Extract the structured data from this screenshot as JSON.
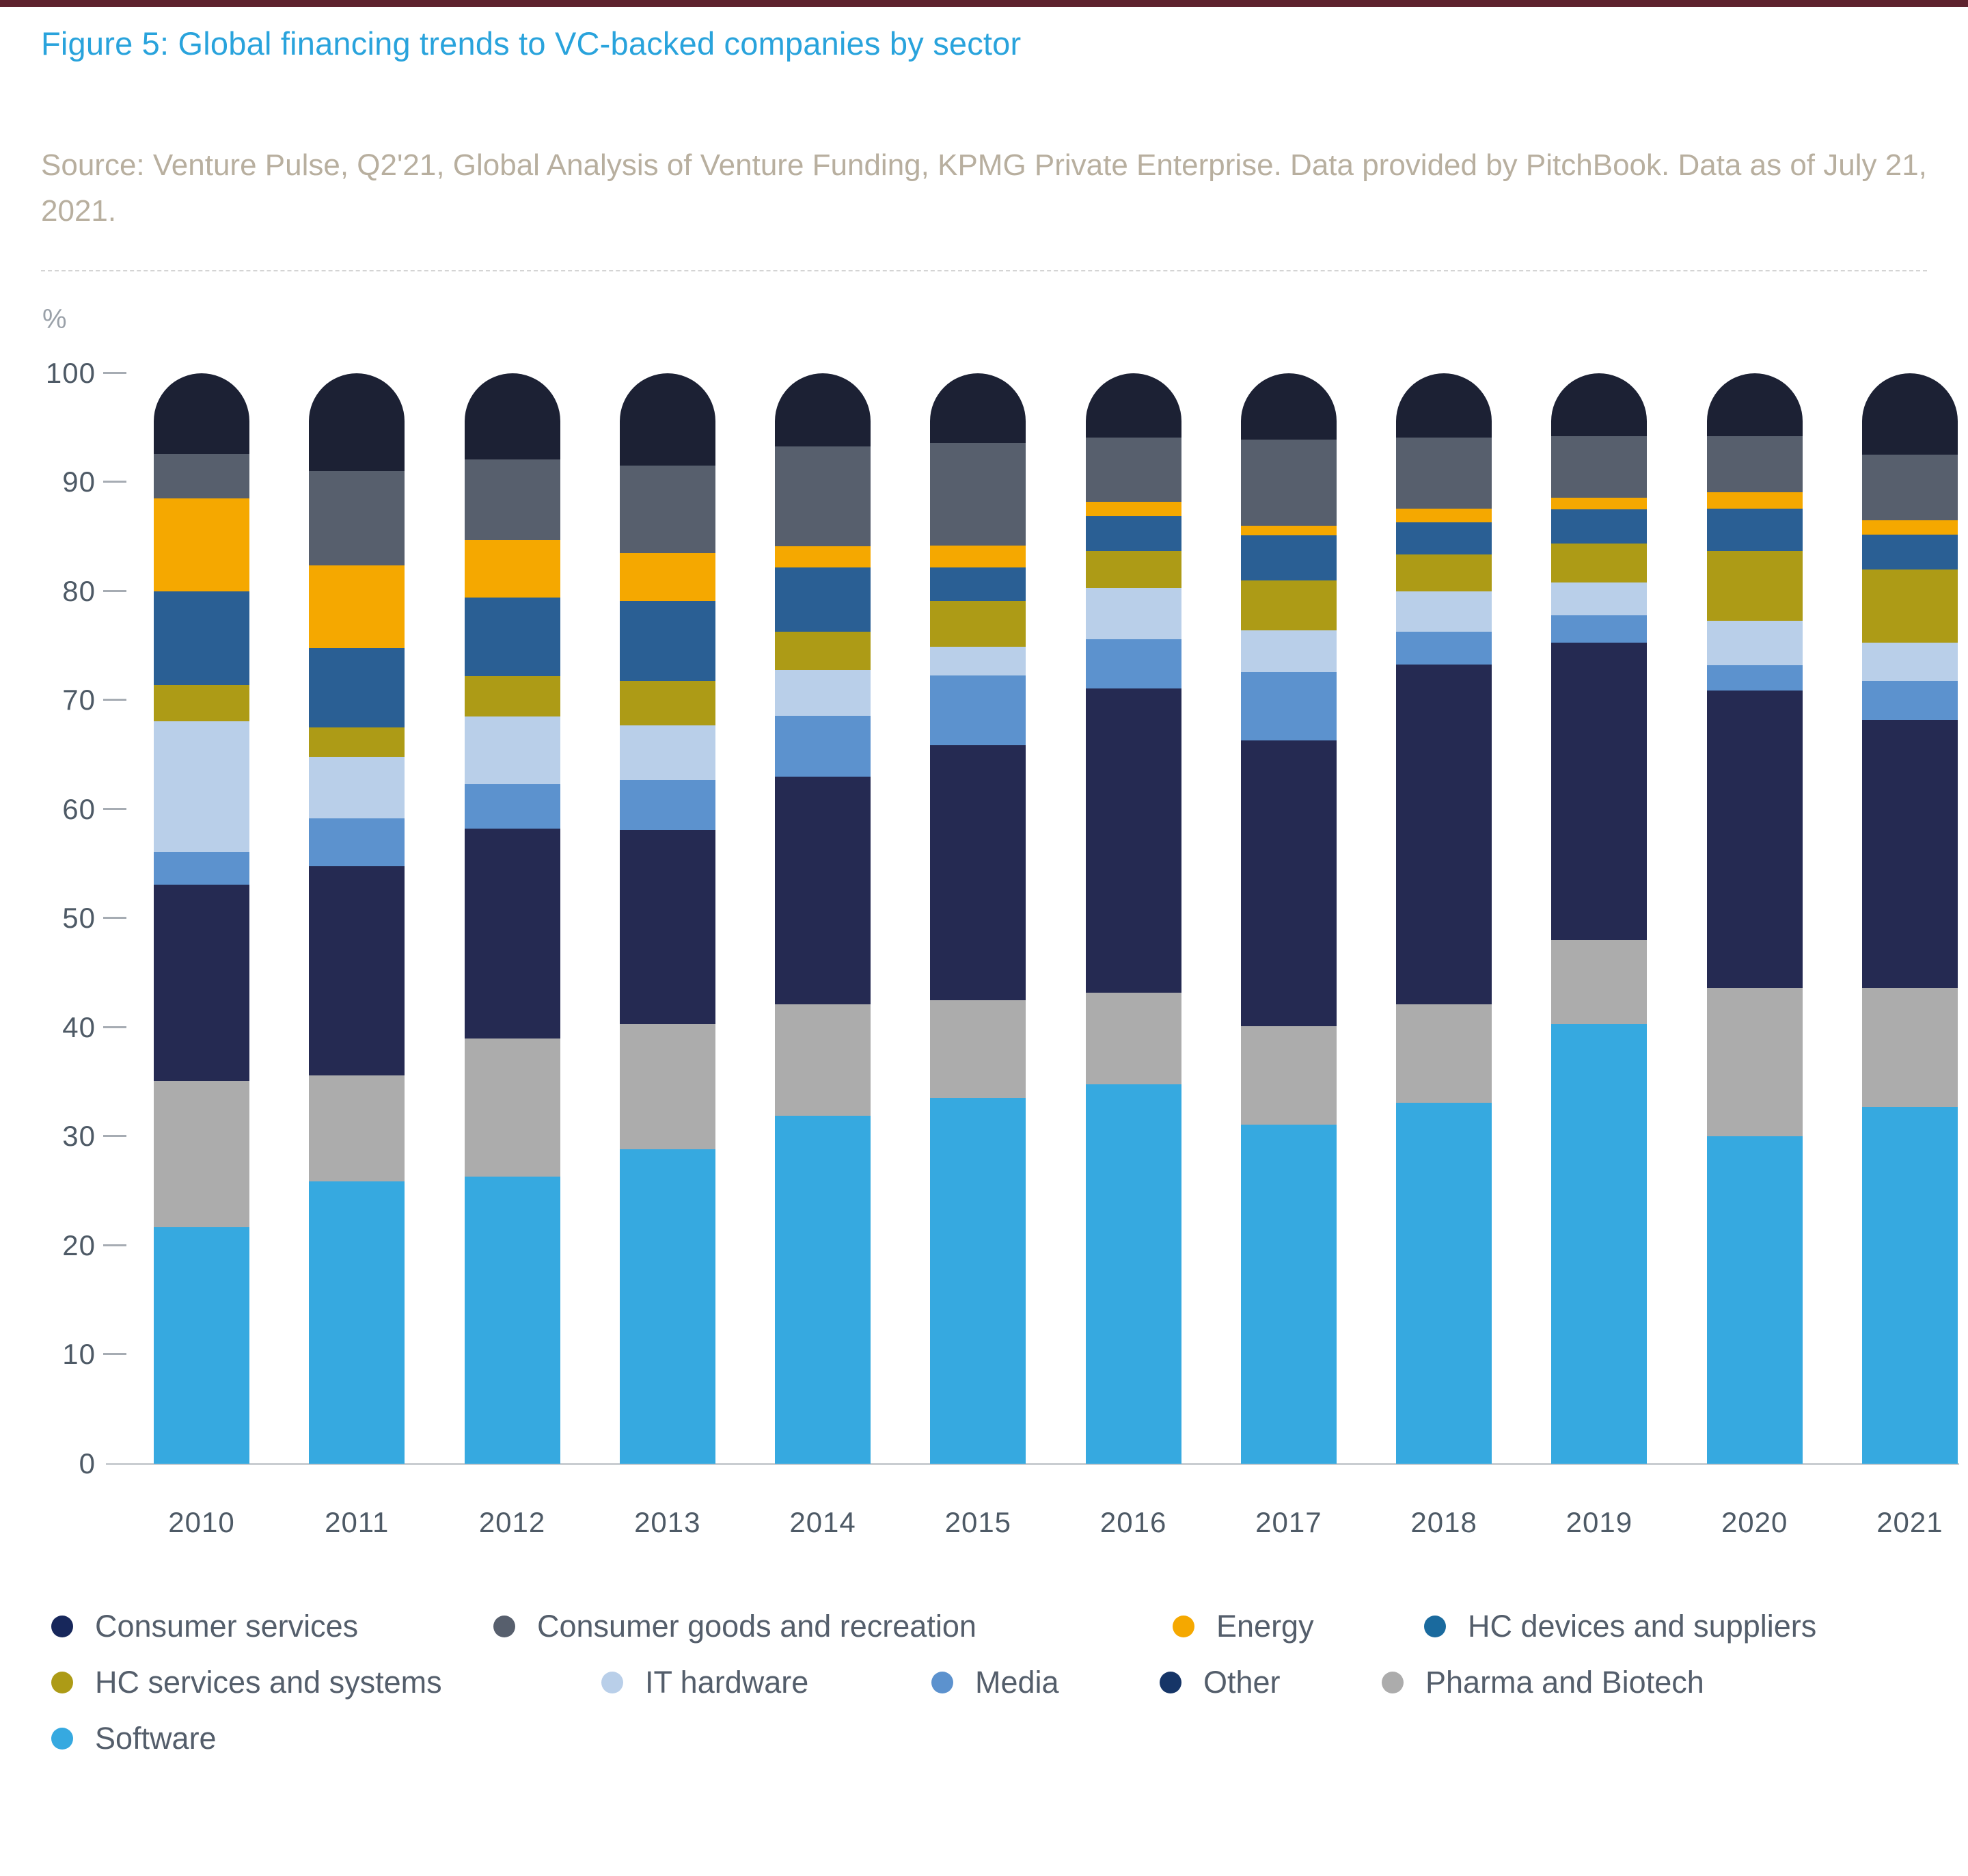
{
  "page": {
    "top_strip_color": "#5E232E",
    "title": "Figure 5: Global financing trends to VC-backed companies by sector",
    "title_color": "#29A3DC",
    "source_text": "Source: Venture Pulse, Q2'21, Global Analysis of Venture Funding, KPMG Private Enterprise. Data provided by PitchBook. Data as of July 21, 2021.",
    "source_color": "#B8AF9F"
  },
  "chart_data": {
    "type": "bar",
    "stacked": true,
    "title": "Figure 5: Global financing trends to VC-backed companies by sector",
    "unit_label": "%",
    "xlabel": "",
    "ylabel": "%",
    "ylim": [
      0,
      100
    ],
    "yticks": [
      0,
      10,
      20,
      30,
      40,
      50,
      60,
      70,
      80,
      90,
      100
    ],
    "grid": false,
    "legend_position": "bottom",
    "categories": [
      "2010",
      "2011",
      "2012",
      "2013",
      "2014",
      "2015",
      "2016",
      "2017",
      "2018",
      "2019",
      "2020",
      "2021"
    ],
    "series": [
      {
        "name": "Software",
        "color": "#36A9E0",
        "values": [
          21.7,
          25.9,
          26.3,
          28.8,
          31.9,
          33.5,
          34.8,
          31.1,
          33.1,
          40.3,
          30.0,
          32.7
        ]
      },
      {
        "name": "Pharma and Biotech",
        "color": "#ACACAC",
        "values": [
          13.4,
          9.7,
          12.7,
          11.5,
          10.2,
          9.0,
          8.4,
          9.0,
          9.0,
          7.7,
          13.6,
          10.9
        ]
      },
      {
        "name": "Consumer services",
        "color": "#252A52",
        "legend_color": "#17275B",
        "values": [
          18.0,
          19.2,
          19.2,
          17.8,
          20.9,
          23.4,
          27.9,
          26.2,
          31.2,
          27.3,
          27.3,
          24.6
        ]
      },
      {
        "name": "Media",
        "color": "#5C92CE",
        "values": [
          3.0,
          4.4,
          4.1,
          4.6,
          5.6,
          6.4,
          4.5,
          6.3,
          3.0,
          2.5,
          2.3,
          3.6
        ]
      },
      {
        "name": "IT hardware",
        "color": "#B9CFE9",
        "values": [
          12.0,
          5.6,
          6.2,
          5.0,
          4.2,
          2.6,
          4.7,
          3.8,
          3.7,
          3.0,
          4.1,
          3.5
        ]
      },
      {
        "name": "HC services and systems",
        "color": "#AD9B16",
        "values": [
          3.3,
          2.7,
          3.7,
          4.1,
          3.5,
          4.2,
          3.4,
          4.6,
          3.4,
          3.6,
          6.4,
          6.7
        ]
      },
      {
        "name": "HC devices and suppliers",
        "color": "#2A5F94",
        "legend_color": "#1A6A9E",
        "values": [
          8.6,
          7.3,
          7.2,
          7.3,
          5.9,
          3.1,
          3.2,
          4.1,
          2.9,
          3.1,
          3.9,
          3.2
        ]
      },
      {
        "name": "Energy",
        "color": "#F5A800",
        "values": [
          8.5,
          7.6,
          5.3,
          4.4,
          1.9,
          2.0,
          1.3,
          0.9,
          1.3,
          1.1,
          1.5,
          1.3
        ]
      },
      {
        "name": "Consumer goods and recreation",
        "color": "#575F6D",
        "values": [
          4.1,
          8.6,
          7.4,
          8.0,
          9.2,
          9.4,
          5.9,
          7.9,
          6.5,
          5.6,
          5.1,
          6.0
        ]
      },
      {
        "name": "Other",
        "color": "#1C2134",
        "legend_color": "#163567",
        "values": [
          7.4,
          9.0,
          7.9,
          8.5,
          6.7,
          6.4,
          5.9,
          6.1,
          5.9,
          5.8,
          5.8,
          7.5
        ]
      }
    ],
    "legend_rows": [
      [
        "Consumer services",
        "Consumer goods and recreation",
        "Energy",
        "HC devices and suppliers"
      ],
      [
        "HC services and systems",
        "IT hardware",
        "Media",
        "Other",
        "Pharma and Biotech"
      ],
      [
        "Software"
      ]
    ]
  }
}
